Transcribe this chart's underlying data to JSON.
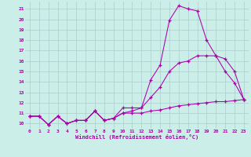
{
  "xlabel": "Windchill (Refroidissement éolien,°C)",
  "bg_color": "#cceee8",
  "grid_color": "#aacccc",
  "line_color": "#aa00aa",
  "xlim": [
    -0.5,
    23.5
  ],
  "ylim": [
    9.5,
    21.7
  ],
  "xticks": [
    0,
    1,
    2,
    3,
    4,
    5,
    6,
    7,
    8,
    9,
    10,
    11,
    12,
    13,
    14,
    15,
    16,
    17,
    18,
    19,
    20,
    21,
    22,
    23
  ],
  "yticks": [
    10,
    11,
    12,
    13,
    14,
    15,
    16,
    17,
    18,
    19,
    20,
    21
  ],
  "series1_x": [
    0,
    1,
    2,
    3,
    4,
    5,
    6,
    7,
    8,
    9,
    10,
    11,
    12,
    13,
    14,
    15,
    16,
    17,
    18,
    19,
    20,
    21,
    22,
    23
  ],
  "series1_y": [
    10.7,
    10.7,
    9.9,
    10.7,
    10.0,
    10.3,
    10.3,
    11.2,
    10.3,
    10.5,
    11.5,
    11.5,
    11.5,
    14.2,
    15.6,
    19.9,
    21.3,
    21.0,
    20.8,
    18.0,
    16.5,
    15.0,
    13.9,
    12.3
  ],
  "series2_x": [
    0,
    1,
    2,
    3,
    4,
    5,
    6,
    7,
    8,
    9,
    10,
    11,
    12,
    13,
    14,
    15,
    16,
    17,
    18,
    19,
    20,
    21,
    22,
    23
  ],
  "series2_y": [
    10.7,
    10.7,
    9.9,
    10.7,
    10.0,
    10.3,
    10.3,
    11.2,
    10.3,
    10.5,
    11.0,
    11.0,
    11.0,
    11.2,
    11.3,
    11.5,
    11.7,
    11.8,
    11.9,
    12.0,
    12.1,
    12.1,
    12.2,
    12.3
  ],
  "series3_x": [
    0,
    1,
    2,
    3,
    4,
    5,
    6,
    7,
    8,
    9,
    10,
    11,
    12,
    13,
    14,
    15,
    16,
    17,
    18,
    19,
    20,
    21,
    22,
    23
  ],
  "series3_y": [
    10.7,
    10.7,
    9.9,
    10.7,
    10.0,
    10.3,
    10.3,
    11.2,
    10.3,
    10.5,
    11.0,
    11.2,
    11.5,
    12.5,
    13.5,
    15.0,
    15.8,
    16.0,
    16.5,
    16.5,
    16.5,
    16.2,
    15.0,
    12.3
  ]
}
